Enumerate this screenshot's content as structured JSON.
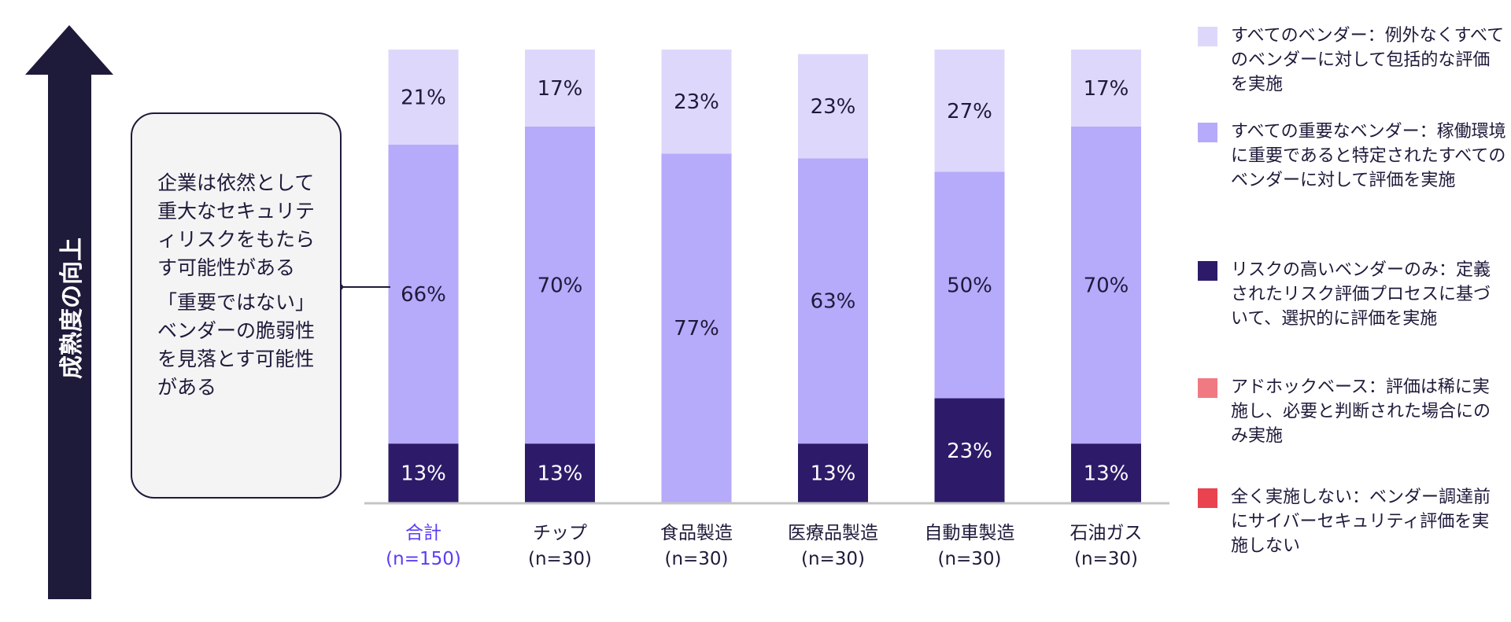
{
  "maturity_label": "成熟度の向上",
  "callout": {
    "line1": "企業は依然として重大なセキュリティリスクをもたらす可能性がある",
    "line2": "「重要ではない」ベンダーの脆弱性を見落とす可能性がある"
  },
  "legend": [
    {
      "label": "すべてのベンダー：例外なくすべてのベンダーに対して包括的な評価を実施",
      "color": "#ddd8fb"
    },
    {
      "label": "すべての重要なベンダー：稼働環境に重要であると特定されたすべてのベンダーに対して評価を実施",
      "color": "#b6aafb"
    },
    {
      "label": "リスクの高いベンダーのみ：定義されたリスク評価プロセスに基づいて、選択的に評価を実施",
      "color": "#2d1b69"
    },
    {
      "label": "アドホックベース：評価は稀に実施し、必要と判断された場合にのみ実施",
      "color": "#f07a82"
    },
    {
      "label": "全く実施しない：ベンダー調達前にサイバーセキュリティ評価を実施しない",
      "color": "#e8434f"
    }
  ],
  "chart_data": {
    "type": "bar",
    "stacked": true,
    "percent_stacked": true,
    "categories": [
      "合計",
      "チップ",
      "食品製造",
      "医療品製造",
      "自動車製造",
      "石油ガス"
    ],
    "sample_sizes": [
      "(n=150)",
      "(n=30)",
      "(n=30)",
      "(n=30)",
      "(n=30)",
      "(n=30)"
    ],
    "highlight_category": "合計",
    "highlight_color": "#5b3df5",
    "series": [
      {
        "name": "すべてのベンダー",
        "values": [
          21,
          17,
          23,
          23,
          27,
          17
        ],
        "color": "#ddd8fb",
        "label_color": "#1e1a3a"
      },
      {
        "name": "すべての重要なベンダー",
        "values": [
          66,
          70,
          77,
          63,
          50,
          70
        ],
        "color": "#b6aafb",
        "label_color": "#1e1a3a"
      },
      {
        "name": "リスクの高いベンダーのみ",
        "values": [
          13,
          13,
          0,
          13,
          23,
          13
        ],
        "color": "#2d1b69",
        "label_color": "#ffffff"
      }
    ],
    "ylim": [
      0,
      100
    ],
    "xlabel": "",
    "ylabel": ""
  }
}
